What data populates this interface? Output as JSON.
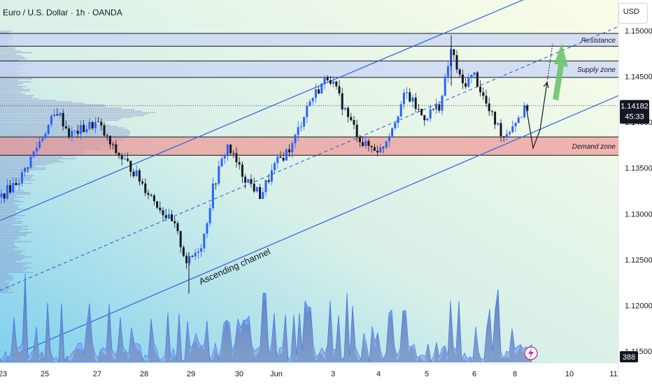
{
  "header": {
    "title": "Euro / U.S. Dollar · 1h · OANDA",
    "currency": "USD"
  },
  "colors": {
    "candle_up": "#2962ff",
    "candle_down": "#131722",
    "channel": "#2f5fe0",
    "zone_supply": "#c7d3f5",
    "zone_demand": "#ef8f8f",
    "volume": "#5b8df6",
    "arrow_green": "#6bc46b"
  },
  "current_price": {
    "value": "1.14182",
    "countdown": "45:33"
  },
  "volume_badge": "388",
  "lightning_icon": "lightning-icon",
  "chart_data": {
    "type": "candlestick",
    "y_axis": {
      "range": [
        1.1135,
        1.1502
      ],
      "ticks": [
        "1.15000",
        "1.14500",
        "1.14000",
        "1.13500",
        "1.13000",
        "1.12500",
        "1.12000",
        "1.11500"
      ]
    },
    "x_axis": {
      "ticks": [
        "23",
        "25",
        "27",
        "28",
        "29",
        "30",
        "Jun",
        "3",
        "4",
        "5",
        "6",
        "8",
        "10",
        "11"
      ]
    },
    "close_path": [
      {
        "t": "23",
        "p": 1.1318
      },
      {
        "t": "24",
        "p": 1.134
      },
      {
        "t": "25",
        "p": 1.1375
      },
      {
        "t": "25.5",
        "p": 1.1415
      },
      {
        "t": "26",
        "p": 1.14
      },
      {
        "t": "27",
        "p": 1.1395
      },
      {
        "t": "27.5",
        "p": 1.1355
      },
      {
        "t": "28",
        "p": 1.1345
      },
      {
        "t": "28.5",
        "p": 1.131
      },
      {
        "t": "29",
        "p": 1.1245
      },
      {
        "t": "29.5",
        "p": 1.13
      },
      {
        "t": "30",
        "p": 1.1375
      },
      {
        "t": "30.5",
        "p": 1.133
      },
      {
        "t": "Jun",
        "p": 1.1355
      },
      {
        "t": "2",
        "p": 1.142
      },
      {
        "t": "3",
        "p": 1.145
      },
      {
        "t": "3.5",
        "p": 1.14
      },
      {
        "t": "4",
        "p": 1.1375
      },
      {
        "t": "4.5",
        "p": 1.137
      },
      {
        "t": "5",
        "p": 1.143
      },
      {
        "t": "5.5",
        "p": 1.1485
      },
      {
        "t": "6",
        "p": 1.1448
      },
      {
        "t": "7",
        "p": 1.1395
      },
      {
        "t": "8",
        "p": 1.1418
      }
    ],
    "zones": [
      {
        "name": "Resistance",
        "top": 1.1497,
        "bottom": 1.1483
      },
      {
        "name": "Supply zone",
        "top": 1.1467,
        "bottom": 1.1449
      },
      {
        "name": "Demand zone",
        "top": 1.1384,
        "bottom": 1.1364
      }
    ],
    "annotations": [
      "Ascending channel"
    ],
    "grid": false
  }
}
